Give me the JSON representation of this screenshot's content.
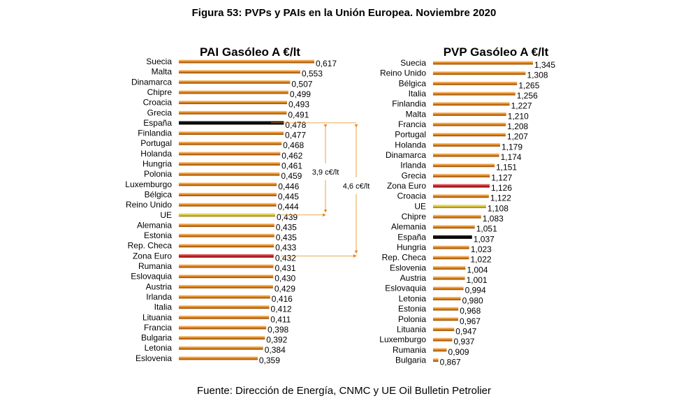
{
  "figure": {
    "title": "Figura 53: PVPs y PAIs en la Unión Europea. Noviembre 2020",
    "source": "Fuente: Dirección de Energía, CNMC y UE Oil Bulletin Petrolier"
  },
  "colors": {
    "default_bar": "#e8891c",
    "spain_bar": "#000000",
    "ue_bar": "#d9c43c",
    "euro_zone_bar": "#c8242b",
    "annotation_line": "#e8891c"
  },
  "chart_data": [
    {
      "type": "bar",
      "orientation": "horizontal",
      "title": "PAI Gasóleo A €/lt",
      "categories": [
        "Suecia",
        "Malta",
        "Dinamarca",
        "Chipre",
        "Croacia",
        "Grecia",
        "España",
        "Finlandia",
        "Portugal",
        "Holanda",
        "Hungria",
        "Polonia",
        "Luxemburgo",
        "Bélgica",
        "Reino Unido",
        "UE",
        "Alemania",
        "Estonia",
        "Rep. Checa",
        "Zona Euro",
        "Rumania",
        "Eslovaquia",
        "Austria",
        "Irlanda",
        "Italia",
        "Lituania",
        "Francia",
        "Bulgaria",
        "Letonia",
        "Eslovenia"
      ],
      "values": [
        0.617,
        0.553,
        0.507,
        0.499,
        0.493,
        0.491,
        0.478,
        0.477,
        0.468,
        0.462,
        0.461,
        0.459,
        0.446,
        0.445,
        0.444,
        0.439,
        0.435,
        0.435,
        0.433,
        0.432,
        0.431,
        0.43,
        0.429,
        0.416,
        0.412,
        0.411,
        0.398,
        0.392,
        0.384,
        0.359
      ],
      "value_labels": [
        "0,617",
        "0,553",
        "0,507",
        "0,499",
        "0,493",
        "0,491",
        "0,478",
        "0,477",
        "0,468",
        "0,462",
        "0,461",
        "0,459",
        "0,446",
        "0,445",
        "0,444",
        "0,439",
        "0,435",
        "0,435",
        "0,433",
        "0,432",
        "0,431",
        "0,430",
        "0,429",
        "0,416",
        "0,412",
        "0,411",
        "0,398",
        "0,392",
        "0,384",
        "0,359"
      ],
      "highlights": {
        "España": "spain_bar",
        "UE": "ue_bar",
        "Zona Euro": "euro_zone_bar"
      },
      "annotations": [
        {
          "text": "3,9 c€/lt",
          "from": "España",
          "to": "UE"
        },
        {
          "text": "4,6 c€/lt",
          "from": "España",
          "to": "Zona Euro"
        }
      ],
      "xlim": [
        0,
        0.617
      ]
    },
    {
      "type": "bar",
      "orientation": "horizontal",
      "title": "PVP Gasóleo A €/lt",
      "categories": [
        "Suecia",
        "Reino Unido",
        "Bélgica",
        "Italia",
        "Finlandia",
        "Malta",
        "Francia",
        "Portugal",
        "Holanda",
        "Dinamarca",
        "Irlanda",
        "Grecia",
        "Zona Euro",
        "Croacia",
        "UE",
        "Chipre",
        "Alemania",
        "España",
        "Hungria",
        "Rep. Checa",
        "Eslovenia",
        "Austria",
        "Eslovaquia",
        "Letonia",
        "Estonia",
        "Polonia",
        "Lituania",
        "Luxemburgo",
        "Rumania",
        "Bulgaria"
      ],
      "values": [
        1.345,
        1.308,
        1.265,
        1.256,
        1.227,
        1.21,
        1.208,
        1.207,
        1.179,
        1.174,
        1.151,
        1.127,
        1.126,
        1.122,
        1.108,
        1.083,
        1.051,
        1.037,
        1.023,
        1.022,
        1.004,
        1.001,
        0.994,
        0.98,
        0.968,
        0.967,
        0.947,
        0.937,
        0.909,
        0.867
      ],
      "value_labels": [
        "1,345",
        "1,308",
        "1,265",
        "1,256",
        "1,227",
        "1,210",
        "1,208",
        "1,207",
        "1,179",
        "1,174",
        "1,151",
        "1,127",
        "1,126",
        "1,122",
        "1,108",
        "1,083",
        "1,051",
        "1,037",
        "1,023",
        "1,022",
        "1,004",
        "1,001",
        "0,994",
        "0,980",
        "0,968",
        "0,967",
        "0,947",
        "0,937",
        "0,909",
        "0,867"
      ],
      "highlights": {
        "España": "spain_bar",
        "UE": "ue_bar",
        "Zona Euro": "euro_zone_bar"
      },
      "xlim": [
        0.84,
        1.345
      ]
    }
  ]
}
